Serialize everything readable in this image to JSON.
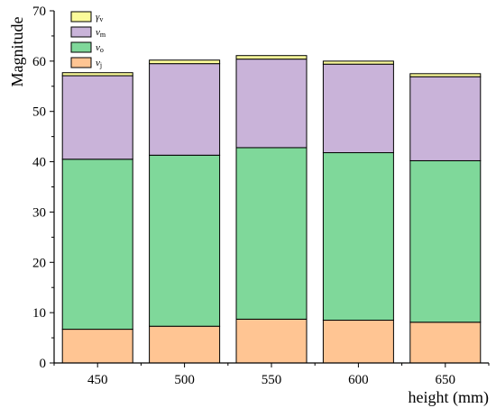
{
  "chart_data": {
    "type": "bar",
    "stacked": true,
    "categories": [
      "450",
      "500",
      "550",
      "600",
      "650"
    ],
    "series": [
      {
        "name": "v_j",
        "label_main": "v",
        "label_sub": "j",
        "color": "#ffc593",
        "values": [
          6.7,
          7.3,
          8.7,
          8.5,
          8.1
        ]
      },
      {
        "name": "v_o",
        "label_main": "v",
        "label_sub": "o",
        "color": "#7fd89a",
        "values": [
          33.8,
          34.0,
          34.1,
          33.3,
          32.1
        ]
      },
      {
        "name": "v_m",
        "label_main": "v",
        "label_sub": "m",
        "color": "#c9b3d9",
        "values": [
          16.6,
          18.2,
          17.6,
          17.6,
          16.7
        ]
      },
      {
        "name": "γ_v",
        "label_main": "γ",
        "label_sub": "v",
        "color": "#fbfb9a",
        "values": [
          0.6,
          0.7,
          0.7,
          0.6,
          0.6
        ]
      }
    ],
    "xlabel": "height (mm)",
    "ylabel": "Magnitude",
    "ylim": [
      0,
      70
    ],
    "yticks": [
      0,
      10,
      20,
      30,
      40,
      50,
      60,
      70
    ],
    "grid": false,
    "legend": "top-left"
  }
}
